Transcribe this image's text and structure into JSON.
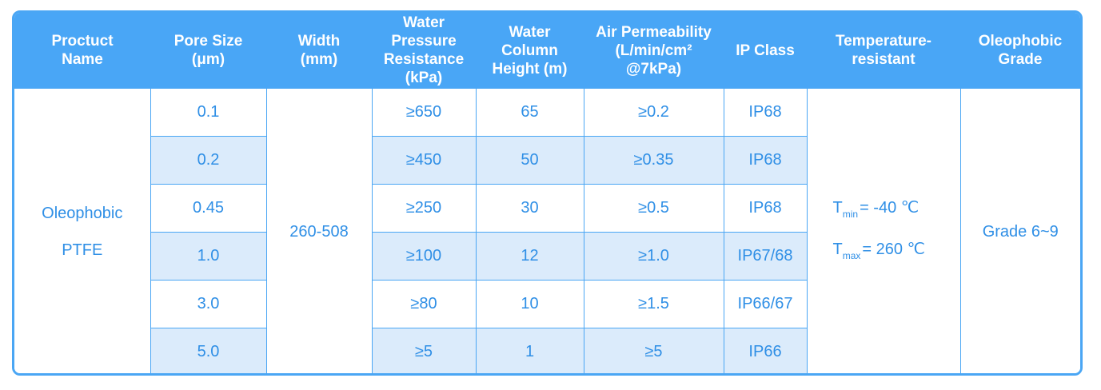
{
  "headers": [
    {
      "key": "name",
      "lines": [
        "Proctuct",
        "Name"
      ]
    },
    {
      "key": "pore",
      "lines": [
        "Pore Size",
        "(μm)"
      ]
    },
    {
      "key": "width",
      "lines": [
        "Width",
        "(mm)"
      ]
    },
    {
      "key": "pressure",
      "lines": [
        "Water Pressure",
        "Resistance",
        "(kPa)"
      ]
    },
    {
      "key": "column",
      "lines": [
        "Water",
        "Column",
        "Height (m)"
      ]
    },
    {
      "key": "air",
      "lines": [
        "Air Permeability",
        "(L/min/cm²",
        "@7kPa)"
      ]
    },
    {
      "key": "ip",
      "lines": [
        "IP Class"
      ]
    },
    {
      "key": "temp",
      "lines": [
        "Temperature-",
        "resistant"
      ]
    },
    {
      "key": "oleo",
      "lines": [
        "Oleophobic",
        "Grade"
      ]
    }
  ],
  "product_name": [
    "Oleophobic",
    "PTFE"
  ],
  "width_value": "260-508",
  "temperature": {
    "tmin_label": "T",
    "tmin_sub": "min",
    "tmin_value": "= -40 ℃",
    "tmax_label": "T",
    "tmax_sub": "max",
    "tmax_value": "= 260 ℃"
  },
  "oleophobic_grade": "Grade 6~9",
  "rows": [
    {
      "pore": "0.1",
      "pressure": "≥650",
      "column": "65",
      "air": "≥0.2",
      "ip": "IP68"
    },
    {
      "pore": "0.2",
      "pressure": "≥450",
      "column": "50",
      "air": "≥0.35",
      "ip": "IP68"
    },
    {
      "pore": "0.45",
      "pressure": "≥250",
      "column": "30",
      "air": "≥0.5",
      "ip": "IP68"
    },
    {
      "pore": "1.0",
      "pressure": "≥100",
      "column": "12",
      "air": "≥1.0",
      "ip": "IP67/68"
    },
    {
      "pore": "3.0",
      "pressure": "≥80",
      "column": "10",
      "air": "≥1.5",
      "ip": "IP66/67"
    },
    {
      "pore": "5.0",
      "pressure": "≥5",
      "column": "1",
      "air": "≥5",
      "ip": "IP66"
    }
  ]
}
